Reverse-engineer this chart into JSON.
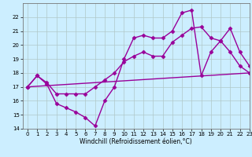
{
  "line1_x": [
    0,
    1,
    2,
    3,
    4,
    5,
    6,
    7,
    8,
    9,
    10,
    11,
    12,
    13,
    14,
    15,
    16,
    17,
    18,
    19,
    20,
    21,
    22,
    23
  ],
  "line1_y": [
    17.0,
    17.8,
    17.2,
    15.8,
    15.5,
    15.2,
    14.8,
    14.2,
    16.0,
    17.0,
    19.0,
    20.5,
    20.7,
    20.5,
    20.5,
    21.0,
    22.3,
    22.5,
    17.8,
    19.5,
    20.3,
    21.2,
    19.5,
    18.5
  ],
  "line2_x": [
    0,
    1,
    2,
    3,
    4,
    5,
    6,
    7,
    8,
    9,
    10,
    11,
    12,
    13,
    14,
    15,
    16,
    17,
    18,
    19,
    20,
    21,
    22,
    23
  ],
  "line2_y": [
    17.0,
    17.8,
    17.3,
    16.5,
    16.5,
    16.5,
    16.5,
    17.0,
    17.5,
    18.0,
    18.8,
    19.2,
    19.5,
    19.2,
    19.2,
    20.2,
    20.7,
    21.2,
    21.3,
    20.5,
    20.3,
    19.5,
    18.5,
    18.0
  ],
  "line3_x": [
    0,
    23
  ],
  "line3_y": [
    17.0,
    18.0
  ],
  "color": "#990099",
  "bg_color": "#cceeff",
  "grid_color": "#b0c8c8",
  "xlabel": "Windchill (Refroidissement éolien,°C)",
  "xlim": [
    -0.5,
    23
  ],
  "ylim": [
    14,
    23
  ],
  "yticks": [
    14,
    15,
    16,
    17,
    18,
    19,
    20,
    21,
    22
  ],
  "xticks": [
    0,
    1,
    2,
    3,
    4,
    5,
    6,
    7,
    8,
    9,
    10,
    11,
    12,
    13,
    14,
    15,
    16,
    17,
    18,
    19,
    20,
    21,
    22,
    23
  ],
  "marker": "D",
  "markersize": 2.5,
  "linewidth": 1.0,
  "tick_fontsize": 5.0,
  "xlabel_fontsize": 5.5
}
